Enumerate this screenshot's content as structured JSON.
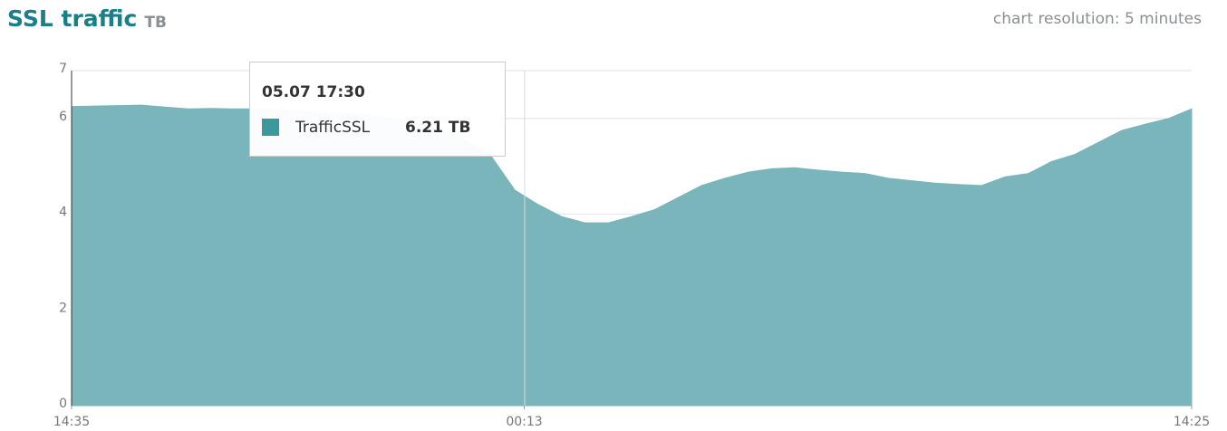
{
  "chart_data": {
    "type": "area",
    "title": "SSL traffic",
    "unit": "TB",
    "subtitle": "chart resolution: 5 minutes",
    "series": [
      {
        "name": "TrafficSSL",
        "color": "#7ab5bb",
        "values": [
          6.25,
          6.26,
          6.27,
          6.28,
          6.24,
          6.2,
          6.21,
          6.2,
          6.2,
          6.18,
          6.15,
          6.12,
          6.1,
          6.05,
          6.0,
          5.9,
          5.75,
          5.5,
          5.2,
          4.5,
          4.2,
          3.95,
          3.82,
          3.82,
          3.95,
          4.1,
          4.35,
          4.6,
          4.75,
          4.88,
          4.95,
          4.97,
          4.92,
          4.88,
          4.85,
          4.75,
          4.7,
          4.65,
          4.62,
          4.6,
          4.78,
          4.85,
          5.1,
          5.25,
          5.5,
          5.75,
          5.88,
          6.0,
          6.2
        ]
      }
    ],
    "xlim": [
      0,
      48
    ],
    "xticks": [
      {
        "value": 0,
        "label": "14:35"
      },
      {
        "value": 19.4,
        "label": "00:13"
      },
      {
        "value": 48,
        "label": "14:25"
      }
    ],
    "ylim": [
      0,
      7
    ],
    "yticks": [
      0,
      2,
      4,
      6,
      7
    ],
    "grid": true,
    "tooltip": {
      "title": "05.07 17:30",
      "series": "TrafficSSL",
      "color": "#3a9a9b",
      "value": 6.21,
      "value_label": "6.21 TB"
    }
  }
}
